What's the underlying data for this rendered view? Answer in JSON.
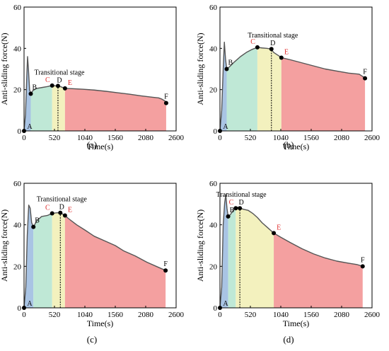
{
  "colors": {
    "blue": "#a9c4e4",
    "green": "#bfe8d6",
    "yellow": "#f3f1be",
    "red": "#f4a0a0",
    "curve": "#555555",
    "red_label": "#e03030",
    "black_label": "#000000"
  },
  "chart_data": [
    {
      "id": "a",
      "type": "line",
      "panel_label": "(a)",
      "xlabel": "Time(s)",
      "ylabel": "Anti-sliding force(N)",
      "xlim": [
        0,
        2600
      ],
      "ylim": [
        0,
        60
      ],
      "xticks": [
        0,
        520,
        1040,
        1560,
        2080,
        2600
      ],
      "yticks": [
        0,
        20,
        40,
        60
      ],
      "annotation": "Transitional stage",
      "curve": [
        [
          0,
          0
        ],
        [
          25,
          8
        ],
        [
          45,
          25
        ],
        [
          60,
          36
        ],
        [
          75,
          30
        ],
        [
          95,
          20
        ],
        [
          115,
          18
        ],
        [
          150,
          19.5
        ],
        [
          200,
          20.5
        ],
        [
          300,
          21
        ],
        [
          400,
          21.5
        ],
        [
          480,
          22
        ],
        [
          560,
          21.8
        ],
        [
          620,
          21.5
        ],
        [
          700,
          20.6
        ],
        [
          800,
          20.5
        ],
        [
          1000,
          20.2
        ],
        [
          1200,
          19.8
        ],
        [
          1400,
          19.2
        ],
        [
          1600,
          18.5
        ],
        [
          1800,
          17.8
        ],
        [
          2000,
          17
        ],
        [
          2200,
          16.3
        ],
        [
          2300,
          16
        ],
        [
          2350,
          15.5
        ],
        [
          2410,
          14.5
        ],
        [
          2430,
          13.5
        ]
      ],
      "points": [
        {
          "label": "A",
          "x": 0,
          "y": 0,
          "color": "black"
        },
        {
          "label": "B",
          "x": 115,
          "y": 18,
          "color": "black"
        },
        {
          "label": "C",
          "x": 480,
          "y": 22,
          "color": "red"
        },
        {
          "label": "D",
          "x": 580,
          "y": 21.8,
          "color": "black"
        },
        {
          "label": "E",
          "x": 700,
          "y": 20.6,
          "color": "red"
        },
        {
          "label": "F",
          "x": 2430,
          "y": 13.5,
          "color": "black"
        }
      ],
      "regions": [
        {
          "color": "blue",
          "x0": 0,
          "x1": 115
        },
        {
          "color": "green",
          "x0": 115,
          "x1": 480
        },
        {
          "color": "yellow",
          "x0": 480,
          "x1": 700
        },
        {
          "color": "red",
          "x0": 700,
          "x1": 2430
        }
      ],
      "dashed_x": 580
    },
    {
      "id": "b",
      "type": "line",
      "panel_label": "(b)",
      "xlabel": "Time(s)",
      "ylabel": "Anti-sliding force(N)",
      "xlim": [
        0,
        2600
      ],
      "ylim": [
        0,
        60
      ],
      "xticks": [
        0,
        520,
        1040,
        1560,
        2080,
        2600
      ],
      "yticks": [
        0,
        20,
        40,
        60
      ],
      "annotation": "Transitional stage",
      "curve": [
        [
          0,
          0
        ],
        [
          30,
          10
        ],
        [
          55,
          30
        ],
        [
          75,
          43
        ],
        [
          95,
          35
        ],
        [
          115,
          30
        ],
        [
          160,
          31
        ],
        [
          250,
          33.5
        ],
        [
          350,
          36
        ],
        [
          450,
          38
        ],
        [
          550,
          39.5
        ],
        [
          640,
          40.5
        ],
        [
          720,
          40.2
        ],
        [
          800,
          40
        ],
        [
          870,
          39.7
        ],
        [
          920,
          38
        ],
        [
          1000,
          36.5
        ],
        [
          1050,
          35.5
        ],
        [
          1200,
          34.5
        ],
        [
          1400,
          33
        ],
        [
          1600,
          31.5
        ],
        [
          1800,
          30
        ],
        [
          2000,
          29
        ],
        [
          2200,
          28
        ],
        [
          2380,
          27.5
        ],
        [
          2450,
          26.2
        ],
        [
          2480,
          25.5
        ]
      ],
      "points": [
        {
          "label": "A",
          "x": 0,
          "y": 0,
          "color": "black"
        },
        {
          "label": "B",
          "x": 115,
          "y": 30,
          "color": "black"
        },
        {
          "label": "C",
          "x": 640,
          "y": 40.5,
          "color": "red"
        },
        {
          "label": "D",
          "x": 880,
          "y": 39.7,
          "color": "black"
        },
        {
          "label": "E",
          "x": 1050,
          "y": 35.5,
          "color": "red"
        },
        {
          "label": "F",
          "x": 2480,
          "y": 25.5,
          "color": "black"
        }
      ],
      "regions": [
        {
          "color": "blue",
          "x0": 0,
          "x1": 115
        },
        {
          "color": "green",
          "x0": 115,
          "x1": 640
        },
        {
          "color": "yellow",
          "x0": 640,
          "x1": 1050
        },
        {
          "color": "red",
          "x0": 1050,
          "x1": 2480
        }
      ],
      "dashed_x": 880
    },
    {
      "id": "c",
      "type": "line",
      "panel_label": "(c)",
      "xlabel": "Time(s)",
      "ylabel": "Anti-sliding force(N)",
      "xlim": [
        0,
        2600
      ],
      "ylim": [
        0,
        60
      ],
      "xticks": [
        0,
        520,
        1040,
        1560,
        2080,
        2600
      ],
      "yticks": [
        0,
        20,
        40,
        60
      ],
      "annotation": "Transitional stage",
      "curve": [
        [
          0,
          0
        ],
        [
          30,
          10
        ],
        [
          55,
          35
        ],
        [
          80,
          49.5
        ],
        [
          105,
          48
        ],
        [
          130,
          41
        ],
        [
          160,
          39
        ],
        [
          220,
          42
        ],
        [
          300,
          44
        ],
        [
          400,
          44.5
        ],
        [
          480,
          45.5
        ],
        [
          560,
          45.8
        ],
        [
          620,
          45.8
        ],
        [
          700,
          44.5
        ],
        [
          760,
          43
        ],
        [
          900,
          40
        ],
        [
          1040,
          37.5
        ],
        [
          1200,
          34.5
        ],
        [
          1400,
          32
        ],
        [
          1560,
          30
        ],
        [
          1700,
          27.5
        ],
        [
          1900,
          25
        ],
        [
          2100,
          22
        ],
        [
          2300,
          19.5
        ],
        [
          2420,
          18
        ]
      ],
      "points": [
        {
          "label": "A",
          "x": 0,
          "y": 0,
          "color": "black"
        },
        {
          "label": "B",
          "x": 160,
          "y": 39,
          "color": "black"
        },
        {
          "label": "C",
          "x": 480,
          "y": 45.5,
          "color": "red"
        },
        {
          "label": "D",
          "x": 620,
          "y": 45.8,
          "color": "black"
        },
        {
          "label": "E",
          "x": 700,
          "y": 44.5,
          "color": "red"
        },
        {
          "label": "F",
          "x": 2420,
          "y": 18,
          "color": "black"
        }
      ],
      "regions": [
        {
          "color": "blue",
          "x0": 0,
          "x1": 160
        },
        {
          "color": "green",
          "x0": 160,
          "x1": 480
        },
        {
          "color": "yellow",
          "x0": 480,
          "x1": 700
        },
        {
          "color": "red",
          "x0": 700,
          "x1": 2420
        }
      ],
      "dashed_x": 620
    },
    {
      "id": "d",
      "type": "line",
      "panel_label": "(d)",
      "xlabel": "Time(s)",
      "ylabel": "Anti-sliding force(N)",
      "xlim": [
        0,
        2600
      ],
      "ylim": [
        0,
        60
      ],
      "xticks": [
        0,
        520,
        1040,
        1560,
        2080,
        2600
      ],
      "yticks": [
        0,
        20,
        40,
        60
      ],
      "annotation": "Transitional stage",
      "curve": [
        [
          0,
          0
        ],
        [
          30,
          10
        ],
        [
          55,
          40
        ],
        [
          80,
          50.5
        ],
        [
          100,
          54.5
        ],
        [
          120,
          48
        ],
        [
          140,
          44
        ],
        [
          180,
          45
        ],
        [
          230,
          47
        ],
        [
          290,
          48.5
        ],
        [
          350,
          48
        ],
        [
          400,
          47.5
        ],
        [
          480,
          47
        ],
        [
          560,
          45.5
        ],
        [
          640,
          43.5
        ],
        [
          720,
          41
        ],
        [
          820,
          38.5
        ],
        [
          920,
          36
        ],
        [
          1040,
          34
        ],
        [
          1200,
          31.5
        ],
        [
          1400,
          28.5
        ],
        [
          1600,
          26
        ],
        [
          1800,
          24
        ],
        [
          2000,
          22.5
        ],
        [
          2200,
          21.5
        ],
        [
          2350,
          20.8
        ],
        [
          2440,
          20
        ]
      ],
      "points": [
        {
          "label": "A",
          "x": 0,
          "y": 0,
          "color": "black"
        },
        {
          "label": "B",
          "x": 140,
          "y": 44,
          "color": "black"
        },
        {
          "label": "C",
          "x": 270,
          "y": 48,
          "color": "red"
        },
        {
          "label": "D",
          "x": 340,
          "y": 48,
          "color": "black"
        },
        {
          "label": "E",
          "x": 920,
          "y": 36,
          "color": "red"
        },
        {
          "label": "F",
          "x": 2440,
          "y": 20,
          "color": "black"
        }
      ],
      "regions": [
        {
          "color": "blue",
          "x0": 0,
          "x1": 140
        },
        {
          "color": "green",
          "x0": 140,
          "x1": 270
        },
        {
          "color": "yellow",
          "x0": 270,
          "x1": 920
        },
        {
          "color": "red",
          "x0": 920,
          "x1": 2440
        }
      ],
      "dashed_x": 340
    }
  ]
}
